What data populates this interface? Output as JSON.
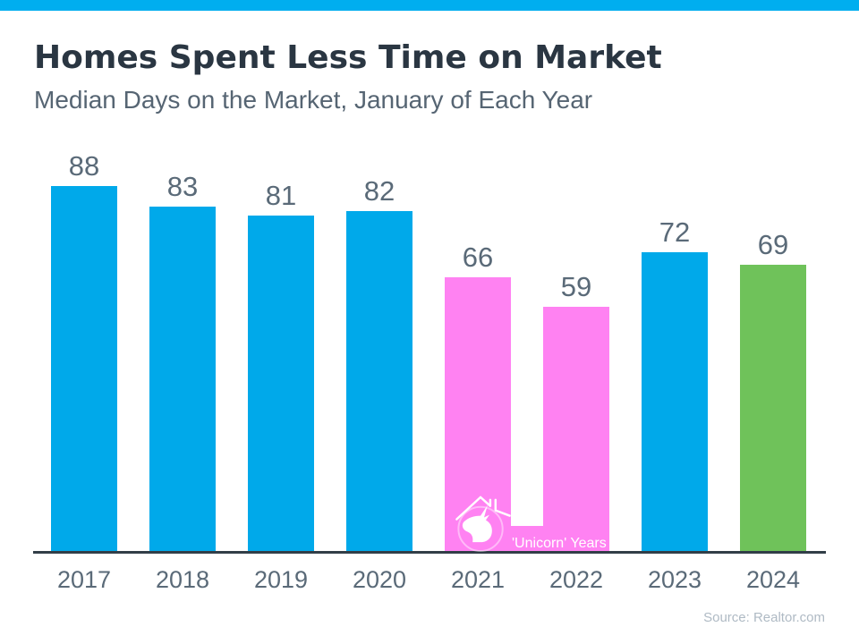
{
  "header": {
    "title": "Homes Spent Less Time on Market",
    "subtitle": "Median Days on the Market, January of Each Year"
  },
  "chart_data": {
    "type": "bar",
    "title": "Homes Spent Less Time on Market",
    "subtitle": "Median Days on the Market, January of Each Year",
    "categories": [
      "2017",
      "2018",
      "2019",
      "2020",
      "2021",
      "2022",
      "2023",
      "2024"
    ],
    "values": [
      88,
      83,
      81,
      82,
      66,
      59,
      72,
      69
    ],
    "bar_colors": [
      "#00A9EA",
      "#00A9EA",
      "#00A9EA",
      "#00A9EA",
      "#FF82F2",
      "#FF82F2",
      "#00A9EA",
      "#6FC25A"
    ],
    "data_labels": true,
    "gridlines": false,
    "legend": false,
    "ylim": [
      0,
      95
    ],
    "xlabel": "",
    "ylabel": "",
    "annotation": {
      "label": "'Unicorn' Years",
      "applies_to": [
        "2021",
        "2022"
      ],
      "icon": "unicorn-house-icon"
    }
  },
  "footer": {
    "source": "Source: Realtor.com"
  },
  "colors": {
    "top_accent": "#00AEEF",
    "title_text": "#2A3642",
    "subtitle_text": "#566573",
    "label_text": "#5A6A78",
    "axis_line": "#323E48",
    "source_text": "#AFBAC4",
    "annotation_text": "#FFFFFF"
  }
}
